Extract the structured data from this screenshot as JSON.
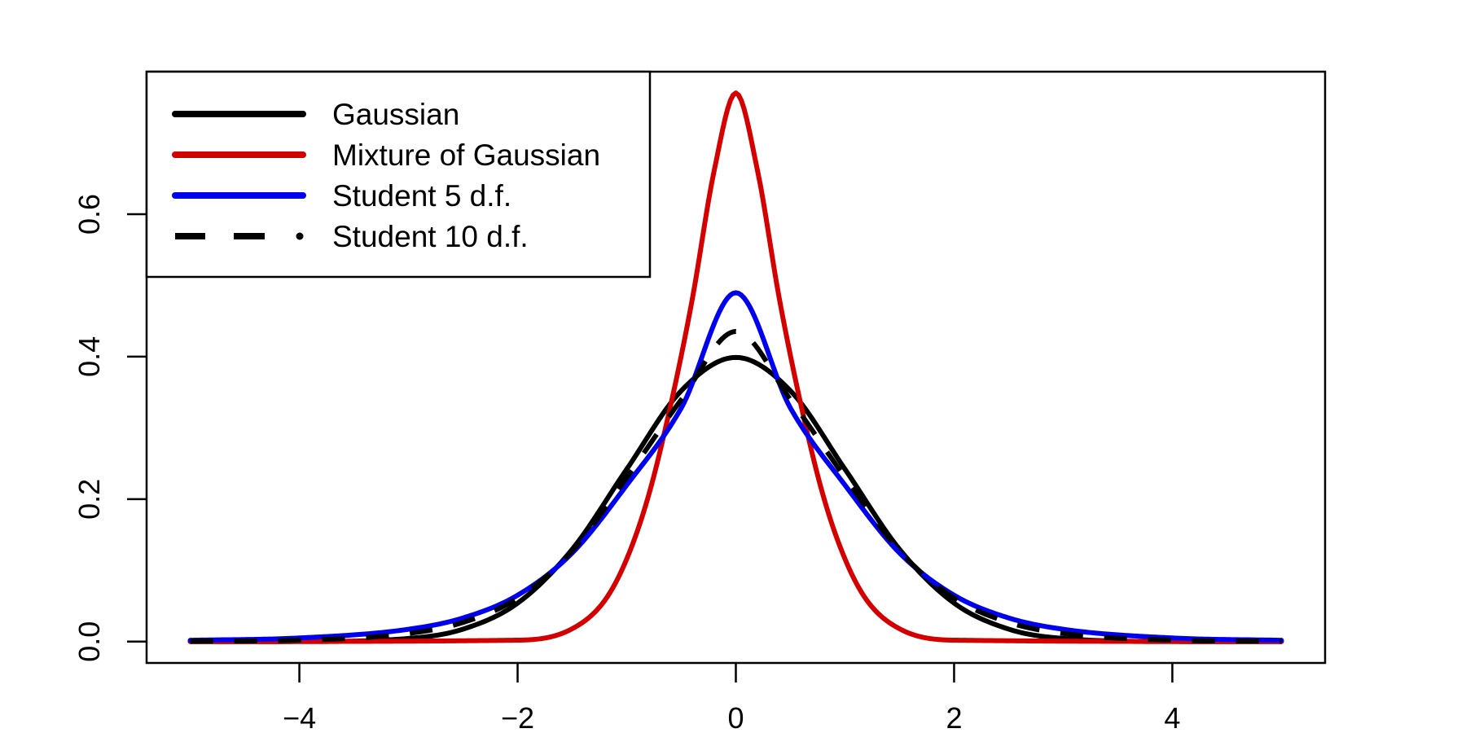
{
  "chart_data": {
    "type": "line",
    "title": "",
    "xlabel": "",
    "ylabel": "",
    "xlim": [
      -5.4,
      5.4
    ],
    "ylim": [
      -0.03,
      0.8
    ],
    "x_ticks": [
      -4,
      -2,
      0,
      2,
      4
    ],
    "x_tick_labels": [
      "−4",
      "−2",
      "0",
      "2",
      "4"
    ],
    "y_ticks": [
      0.0,
      0.2,
      0.4,
      0.6
    ],
    "y_tick_labels": [
      "0.0",
      "0.2",
      "0.4",
      "0.6"
    ],
    "grid": false,
    "legend_position": "top-left",
    "x_range_plotted": [
      -5,
      5
    ],
    "series": [
      {
        "name": "Gaussian",
        "color": "#000000",
        "style": "solid",
        "x": [
          -5,
          -4,
          -3,
          -2.5,
          -2,
          -1.5,
          -1,
          -0.5,
          0,
          0.5,
          1,
          1.5,
          2,
          2.5,
          3,
          4,
          5
        ],
        "values": [
          0.0,
          0.0001,
          0.0044,
          0.0175,
          0.054,
          0.1295,
          0.242,
          0.3521,
          0.3989,
          0.3521,
          0.242,
          0.1295,
          0.054,
          0.0175,
          0.0044,
          0.0001,
          0.0
        ]
      },
      {
        "name": "Mixture of Gaussian",
        "color": "#d40000",
        "style": "solid",
        "x": [
          -5,
          -2,
          -1.5,
          -1.2,
          -1,
          -0.8,
          -0.6,
          -0.4,
          -0.2,
          0,
          0.2,
          0.4,
          0.6,
          0.8,
          1,
          1.2,
          1.5,
          2,
          5
        ],
        "values": [
          0.0,
          0.002,
          0.018,
          0.058,
          0.116,
          0.205,
          0.33,
          0.48,
          0.66,
          0.77,
          0.66,
          0.48,
          0.33,
          0.205,
          0.116,
          0.058,
          0.018,
          0.002,
          0.0
        ]
      },
      {
        "name": "Student 5 d.f.",
        "color": "#0000ee",
        "style": "solid",
        "x": [
          -5,
          -4,
          -3,
          -2.5,
          -2,
          -1.5,
          -1,
          -0.5,
          0,
          0.5,
          1,
          1.5,
          2,
          2.5,
          3,
          4,
          5
        ],
        "values": [
          0.0018,
          0.0051,
          0.0173,
          0.0332,
          0.0651,
          0.1244,
          0.2197,
          0.3279,
          0.4897,
          0.3279,
          0.2197,
          0.1244,
          0.0651,
          0.0332,
          0.0173,
          0.0051,
          0.0018
        ]
      },
      {
        "name": "Student 10 d.f.",
        "color": "#000000",
        "style": "dashed",
        "x": [
          -5,
          -4,
          -3,
          -2.5,
          -2,
          -1.5,
          -1,
          -0.5,
          0,
          0.5,
          1,
          1.5,
          2,
          2.5,
          3,
          4,
          5
        ],
        "values": [
          0.0004,
          0.002,
          0.0114,
          0.0269,
          0.0611,
          0.1274,
          0.2304,
          0.3397,
          0.4353,
          0.3397,
          0.2304,
          0.1274,
          0.0611,
          0.0269,
          0.0114,
          0.002,
          0.0004
        ]
      }
    ]
  }
}
